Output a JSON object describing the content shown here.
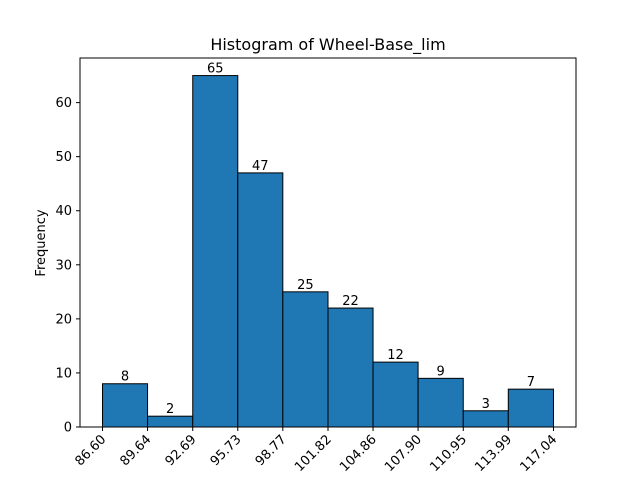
{
  "chart_data": {
    "type": "bar",
    "title": "Histogram of Wheel-Base_lim",
    "xlabel": "",
    "ylabel": "Frequency",
    "bin_edges": [
      "86.60",
      "89.64",
      "92.69",
      "95.73",
      "98.77",
      "101.82",
      "104.86",
      "107.90",
      "110.95",
      "113.99",
      "117.04"
    ],
    "bin_edges_num": [
      86.6,
      89.64,
      92.69,
      95.73,
      98.77,
      101.82,
      104.86,
      107.9,
      110.95,
      113.99,
      117.04
    ],
    "values": [
      8,
      2,
      65,
      47,
      25,
      22,
      12,
      9,
      3,
      7
    ],
    "y_ticks": [
      0,
      10,
      20,
      30,
      40,
      50,
      60
    ],
    "ylim": [
      0,
      68.25
    ],
    "xlim": [
      85.08,
      118.56
    ],
    "bar_color": "#1f77b4",
    "edge_color": "#000000",
    "grid": false
  }
}
